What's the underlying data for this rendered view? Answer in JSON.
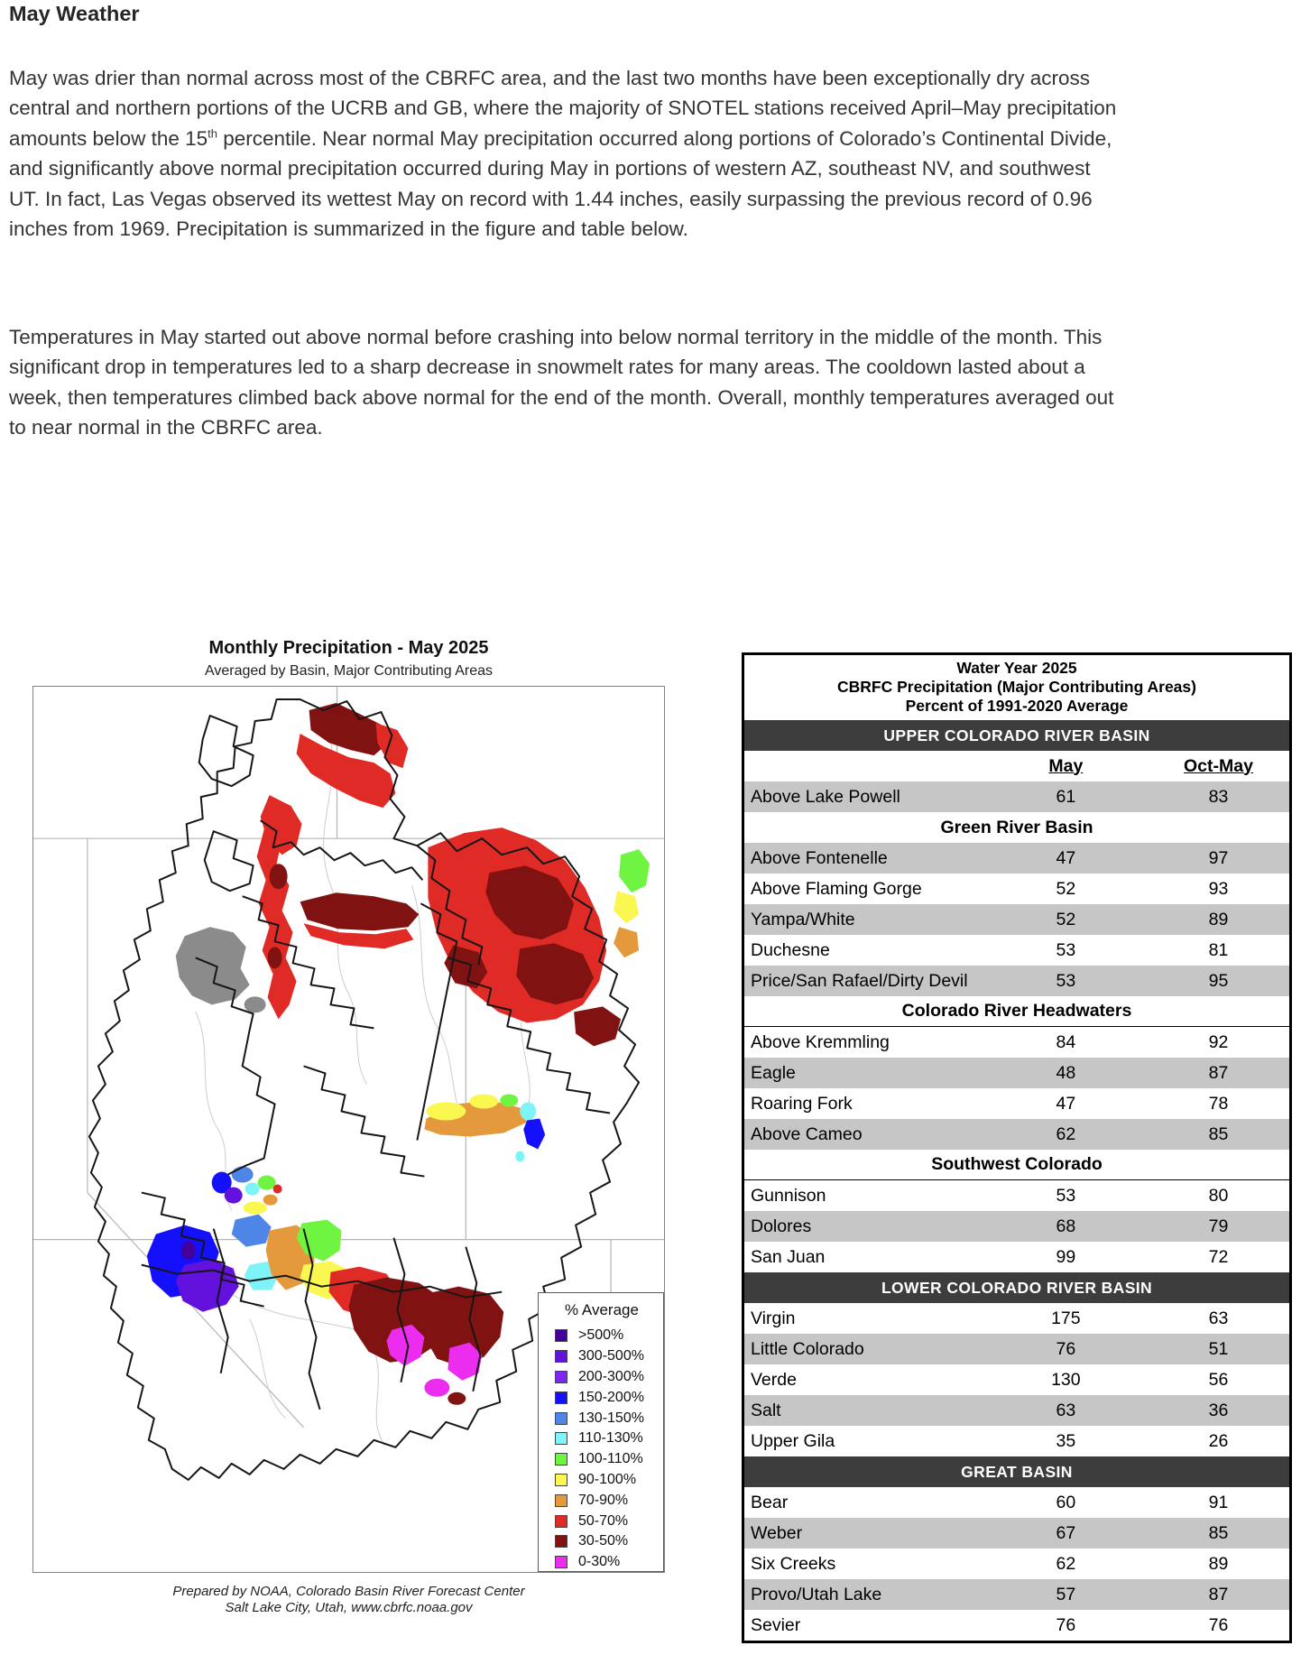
{
  "page": {
    "heading": "May Weather",
    "paragraph1_part1": "May was drier than normal across most of the CBRFC area, and the last two months have been exceptionally dry across central and northern portions of the UCRB and GB, where the majority of SNOTEL stations received April–May precipitation amounts below the 15",
    "paragraph1_sup": "th",
    "paragraph1_part2": " percentile. Near normal May precipitation occurred along portions of Colorado’s Continental Divide, and significantly above normal precipitation occurred during May in portions of western AZ, southeast NV, and southwest UT. In fact, Las Vegas observed its wettest May on record with 1.44 inches, easily surpassing the previous record of 0.96 inches from 1969. Precipitation is summarized in the figure and table below.",
    "paragraph2": "Temperatures in May started out above normal before crashing into below normal territory in the middle of the month. This significant drop in temperatures led to a sharp decrease in snowmelt rates for many areas. The cooldown lasted about a week, then temperatures climbed back above normal for the end of the month. Overall, monthly temperatures averaged out to near normal in the CBRFC area."
  },
  "map_figure": {
    "title": "Monthly Precipitation - May 2025",
    "subtitle": "Averaged by Basin, Major Contributing Areas",
    "caption_line1": "Prepared by NOAA, Colorado Basin River Forecast Center",
    "caption_line2": "Salt Lake City, Utah, www.cbrfc.noaa.gov",
    "legend": {
      "title": "% Average",
      "items": [
        {
          "label": ">500%",
          "color": "#43009b"
        },
        {
          "label": "300-500%",
          "color": "#6311dd"
        },
        {
          "label": "200-300%",
          "color": "#7d26f2"
        },
        {
          "label": "150-200%",
          "color": "#1410fb"
        },
        {
          "label": "130-150%",
          "color": "#4e86e8"
        },
        {
          "label": "110-130%",
          "color": "#7ef4f9"
        },
        {
          "label": "100-110%",
          "color": "#6ef441"
        },
        {
          "label": "90-100%",
          "color": "#faf751"
        },
        {
          "label": "70-90%",
          "color": "#e49a3c"
        },
        {
          "label": "50-70%",
          "color": "#e02a25"
        },
        {
          "label": "30-50%",
          "color": "#801311"
        },
        {
          "label": "0-30%",
          "color": "#ec2cee"
        }
      ]
    }
  },
  "table": {
    "title_line1": "Water Year 2025",
    "title_line2": "CBRFC Precipitation (Major Contributing Areas)",
    "title_line3": "Percent of 1991-2020 Average",
    "col_may": "May",
    "col_octmay": "Oct-May",
    "rows": [
      {
        "type": "band",
        "label": "UPPER COLORADO RIVER BASIN"
      },
      {
        "type": "colheader"
      },
      {
        "type": "data",
        "label": "Above Lake Powell",
        "may": "61",
        "oct_may": "83",
        "shaded": true
      },
      {
        "type": "subheader",
        "label": "Green River Basin",
        "rule": false
      },
      {
        "type": "data",
        "label": "Above Fontenelle",
        "may": "47",
        "oct_may": "97",
        "shaded": true
      },
      {
        "type": "data",
        "label": "Above Flaming Gorge",
        "may": "52",
        "oct_may": "93",
        "shaded": false
      },
      {
        "type": "data",
        "label": "Yampa/White",
        "may": "52",
        "oct_may": "89",
        "shaded": true
      },
      {
        "type": "data",
        "label": "Duchesne",
        "may": "53",
        "oct_may": "81",
        "shaded": false
      },
      {
        "type": "data",
        "label": "Price/San Rafael/Dirty Devil",
        "may": "53",
        "oct_may": "95",
        "shaded": true
      },
      {
        "type": "subheader",
        "label": "Colorado River Headwaters",
        "rule": true
      },
      {
        "type": "data",
        "label": "Above Kremmling",
        "may": "84",
        "oct_may": "92",
        "shaded": false
      },
      {
        "type": "data",
        "label": "Eagle",
        "may": "48",
        "oct_may": "87",
        "shaded": true
      },
      {
        "type": "data",
        "label": "Roaring Fork",
        "may": "47",
        "oct_may": "78",
        "shaded": false
      },
      {
        "type": "data",
        "label": "Above Cameo",
        "may": "62",
        "oct_may": "85",
        "shaded": true
      },
      {
        "type": "subheader",
        "label": "Southwest Colorado",
        "rule": true
      },
      {
        "type": "data",
        "label": "Gunnison",
        "may": "53",
        "oct_may": "80",
        "shaded": false
      },
      {
        "type": "data",
        "label": "Dolores",
        "may": "68",
        "oct_may": "79",
        "shaded": true
      },
      {
        "type": "data",
        "label": "San Juan",
        "may": "99",
        "oct_may": "72",
        "shaded": false
      },
      {
        "type": "band",
        "label": "LOWER COLORADO RIVER BASIN"
      },
      {
        "type": "data",
        "label": "Virgin",
        "may": "175",
        "oct_may": "63",
        "shaded": false
      },
      {
        "type": "data",
        "label": "Little Colorado",
        "may": "76",
        "oct_may": "51",
        "shaded": true
      },
      {
        "type": "data",
        "label": "Verde",
        "may": "130",
        "oct_may": "56",
        "shaded": false
      },
      {
        "type": "data",
        "label": "Salt",
        "may": "63",
        "oct_may": "36",
        "shaded": true
      },
      {
        "type": "data",
        "label": "Upper Gila",
        "may": "35",
        "oct_may": "26",
        "shaded": false
      },
      {
        "type": "band",
        "label": "GREAT BASIN"
      },
      {
        "type": "data",
        "label": "Bear",
        "may": "60",
        "oct_may": "91",
        "shaded": false
      },
      {
        "type": "data",
        "label": "Weber",
        "may": "67",
        "oct_may": "85",
        "shaded": true
      },
      {
        "type": "data",
        "label": "Six Creeks",
        "may": "62",
        "oct_may": "89",
        "shaded": false
      },
      {
        "type": "data",
        "label": "Provo/Utah Lake",
        "may": "57",
        "oct_may": "87",
        "shaded": true
      },
      {
        "type": "data",
        "label": "Sevier",
        "may": "76",
        "oct_may": "76",
        "shaded": false
      }
    ]
  }
}
